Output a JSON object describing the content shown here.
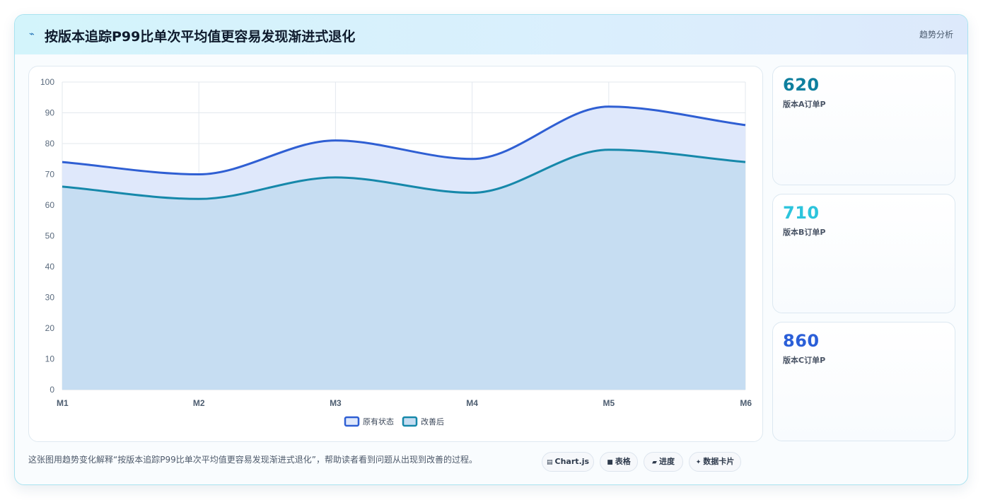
{
  "header": {
    "title": "按版本追踪P99比单次平均值更容易发现渐进式退化",
    "tag": "趋势分析"
  },
  "chart_data": {
    "type": "area",
    "categories": [
      "M1",
      "M2",
      "M3",
      "M4",
      "M5",
      "M6"
    ],
    "series": [
      {
        "name": "原有状态",
        "values": [
          74,
          70,
          81,
          75,
          92,
          86
        ],
        "color": "#2f5fd3",
        "fill": "#dfe8fb"
      },
      {
        "name": "改善后",
        "values": [
          66,
          62,
          69,
          64,
          78,
          74
        ],
        "color": "#1688aa",
        "fill": "#c6ddf2"
      }
    ],
    "ylim": [
      0,
      100
    ],
    "yticks": [
      0,
      10,
      20,
      30,
      40,
      50,
      60,
      70,
      80,
      90,
      100
    ],
    "grid": true,
    "legend": "bottom"
  },
  "stats": [
    {
      "value": "620",
      "label": "版本A订单P",
      "color": "#0e7f9e"
    },
    {
      "value": "710",
      "label": "版本B订单P",
      "color": "#2cc4dc"
    },
    {
      "value": "860",
      "label": "版本C订单P",
      "color": "#2b5fd8"
    }
  ],
  "footer": {
    "text": "这张图用趋势变化解释“按版本追踪P99比单次平均值更容易发现渐进式退化”，帮助读者看到问题从出现到改善的过程。",
    "pills": [
      {
        "icon": "▤",
        "icon_name": "chart-icon",
        "label": "Chart.js"
      },
      {
        "icon": "■",
        "icon_name": "table-icon",
        "label": "表格"
      },
      {
        "icon": "▰",
        "icon_name": "progress-icon",
        "label": "进度"
      },
      {
        "icon": "✦",
        "icon_name": "sparkle-icon",
        "label": "数据卡片"
      }
    ]
  }
}
